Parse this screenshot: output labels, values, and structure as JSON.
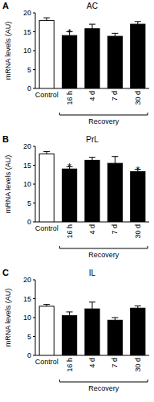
{
  "chart_data": [
    {
      "type": "bar",
      "panel": "A",
      "title": "AC",
      "y_label": "mRNA levels (AU)",
      "categories": [
        "Control",
        "16 h",
        "4 d",
        "7 d",
        "30 d"
      ],
      "values": [
        18,
        14,
        15.8,
        13.8,
        17
      ],
      "errors": [
        0.7,
        1.0,
        1.2,
        0.8,
        0.7
      ],
      "colors": [
        "#ffffff",
        "#000000",
        "#000000",
        "#000000",
        "#000000"
      ],
      "ylim": [
        0,
        20
      ],
      "yticks": [
        0,
        5,
        10,
        15,
        20
      ],
      "annotations": [
        {
          "category": "16 h",
          "text": "*"
        }
      ],
      "x_group": {
        "label": "Recovery",
        "categories": [
          "16 h",
          "4 d",
          "7 d",
          "30 d"
        ]
      }
    },
    {
      "type": "bar",
      "panel": "B",
      "title": "PrL",
      "y_label": "mRNA levels (AU)",
      "categories": [
        "Control",
        "16 h",
        "4 d",
        "7 d",
        "30 d"
      ],
      "values": [
        18,
        14,
        16.3,
        15.5,
        13.3
      ],
      "errors": [
        0.6,
        0.6,
        0.8,
        1.8,
        0.6
      ],
      "colors": [
        "#ffffff",
        "#000000",
        "#000000",
        "#000000",
        "#000000"
      ],
      "ylim": [
        0,
        20
      ],
      "yticks": [
        0,
        5,
        10,
        15,
        20
      ],
      "annotations": [
        {
          "category": "16 h",
          "text": "*"
        },
        {
          "category": "30 d",
          "text": "*"
        }
      ],
      "x_group": {
        "label": "Recovery",
        "categories": [
          "16 h",
          "4 d",
          "7 d",
          "30 d"
        ]
      }
    },
    {
      "type": "bar",
      "panel": "C",
      "title": "IL",
      "y_label": "mRNA levels (AU)",
      "categories": [
        "Control",
        "16 h",
        "4 d",
        "7 d",
        "30 d"
      ],
      "values": [
        13,
        10.5,
        12.3,
        9.3,
        12.5
      ],
      "errors": [
        0.5,
        1.0,
        1.8,
        0.7,
        0.6
      ],
      "colors": [
        "#ffffff",
        "#000000",
        "#000000",
        "#000000",
        "#000000"
      ],
      "ylim": [
        0,
        20
      ],
      "yticks": [
        0,
        5,
        10,
        15,
        20
      ],
      "annotations": [],
      "x_group": {
        "label": "Recovery",
        "categories": [
          "16 h",
          "4 d",
          "7 d",
          "30 d"
        ]
      }
    }
  ]
}
